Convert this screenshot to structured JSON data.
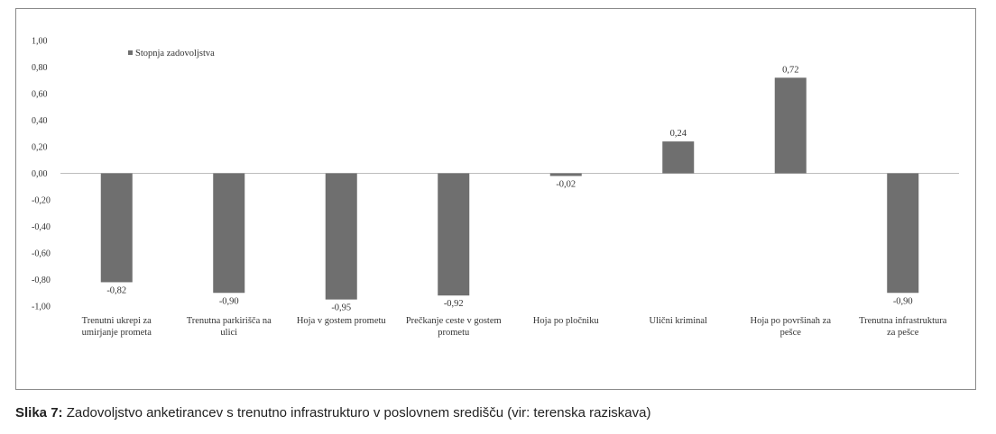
{
  "caption": {
    "label": "Slika 7:",
    "text": " Zadovoljstvo anketirancev s trenutno infrastrukturo v poslovnem središču (vir: terenska raziskava)"
  },
  "colors": {
    "bar": "#6f6f6f",
    "axis": "#bdbdbd",
    "text": "#333333"
  },
  "chart_data": {
    "type": "bar",
    "categories": [
      [
        "Trenutni ukrepi za",
        "umirjanje prometa"
      ],
      [
        "Trenutna parkirišča na",
        "ulici"
      ],
      [
        "Hoja v gostem prometu"
      ],
      [
        "Prečkanje ceste v gostem",
        "prometu"
      ],
      [
        "Hoja po pločniku"
      ],
      [
        "Ulični kriminal"
      ],
      [
        "Hoja po površinah za",
        "pešce"
      ],
      [
        "Trenutna infrastruktura",
        "za pešce"
      ]
    ],
    "series": [
      {
        "name": "Stopnja zadovoljstva",
        "values": [
          -0.82,
          -0.9,
          -0.95,
          -0.92,
          -0.02,
          0.24,
          0.72,
          -0.9
        ]
      }
    ],
    "data_labels": [
      "-0,82",
      "-0,90",
      "-0,95",
      "-0,92",
      "-0,02",
      "0,24",
      "0,72",
      "-0,90"
    ],
    "y_ticks": [
      "1,00",
      "0,80",
      "0,60",
      "0,40",
      "0,20",
      "0,00",
      "-0,20",
      "-0,40",
      "-0,60",
      "-0,80",
      "-1,00"
    ],
    "ylim": [
      -1.0,
      1.0
    ],
    "legend_position": "top-left",
    "grid": false
  }
}
